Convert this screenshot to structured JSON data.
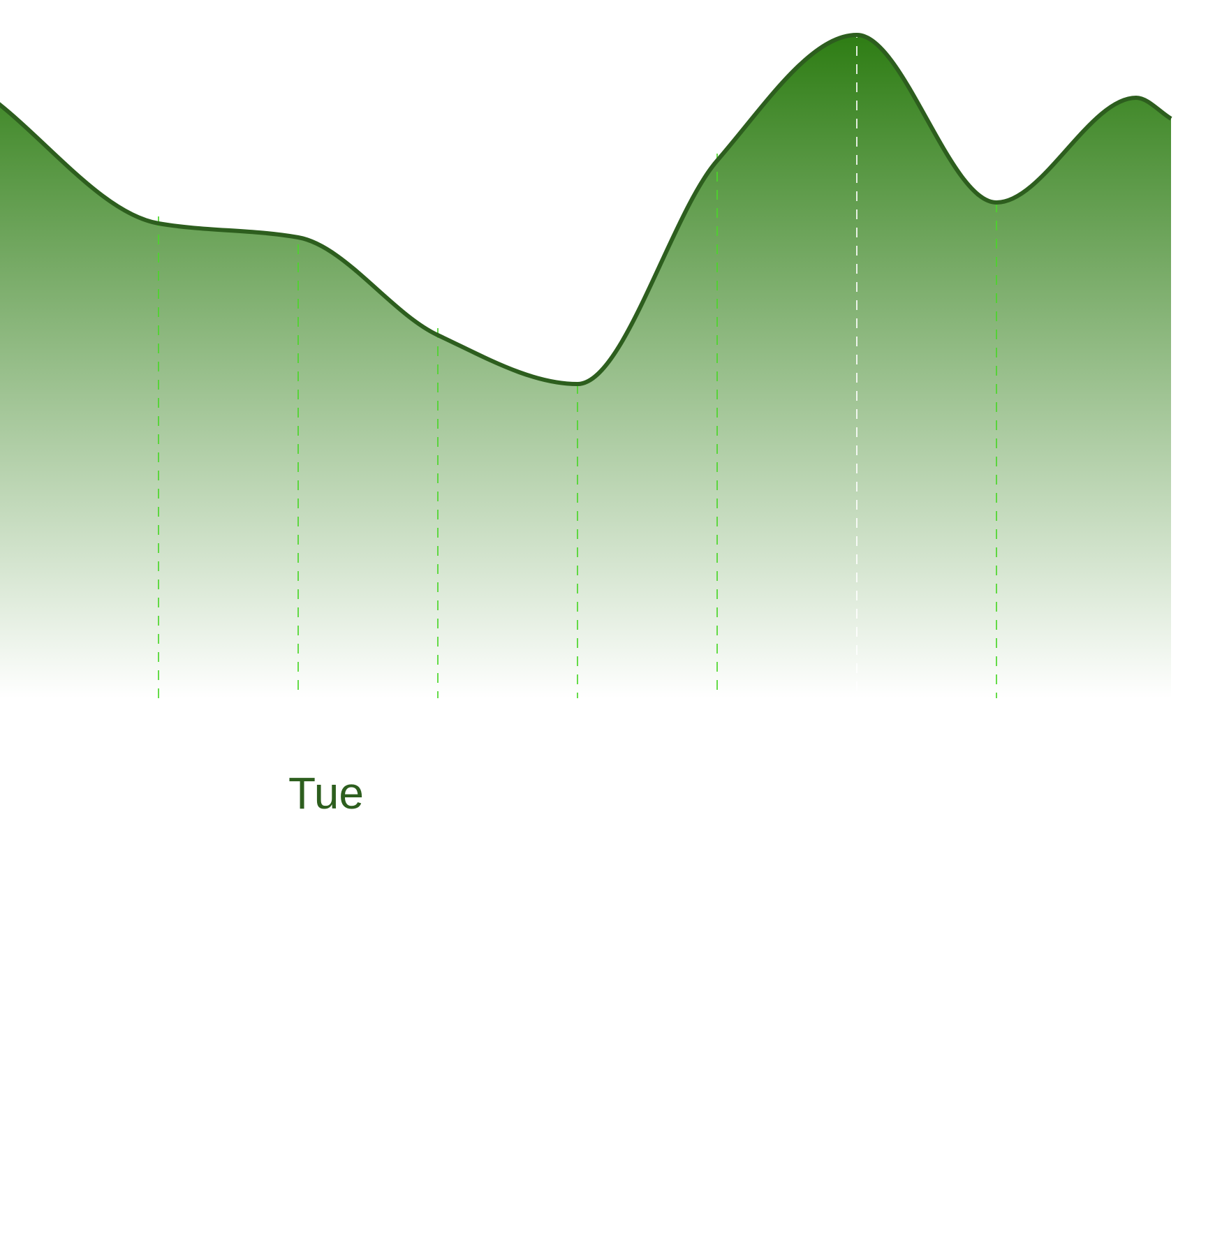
{
  "chart_data": {
    "type": "area",
    "smooth": true,
    "grid": false,
    "legend": "none",
    "colors": {
      "fill_top": "#2e7d14",
      "line": "#2d5e1e",
      "marker_line": "#4cd62b",
      "tick_label": "#2d5e1e"
    },
    "ylim": [
      0,
      100
    ],
    "x": [
      -0.2,
      1,
      2,
      3,
      4,
      5,
      6,
      7,
      8,
      8.25
    ],
    "values": [
      86,
      68,
      66,
      52,
      45,
      77,
      95,
      71,
      86,
      83
    ],
    "markers": [
      {
        "x": 1,
        "top": 69
      },
      {
        "x": 2,
        "top": 65
      },
      {
        "x": 3,
        "top": 53
      },
      {
        "x": 4,
        "top": 45
      },
      {
        "x": 5,
        "top": 78
      },
      {
        "x": 6,
        "top": 96
      },
      {
        "x": 7,
        "top": 71
      }
    ],
    "xticks": [
      {
        "x": 2.2,
        "label": "Tue"
      }
    ]
  }
}
